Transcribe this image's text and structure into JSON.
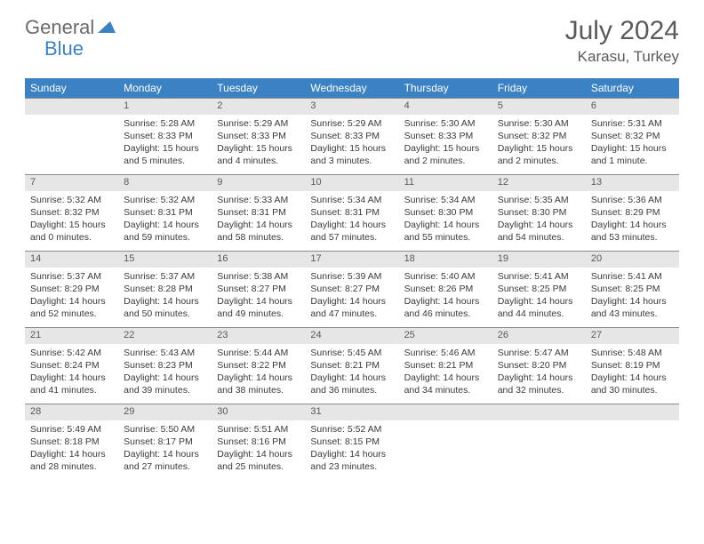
{
  "brand": {
    "part1": "General",
    "part2": "Blue"
  },
  "title": "July 2024",
  "location": "Karasu, Turkey",
  "colors": {
    "header_bg": "#3b82c4",
    "header_fg": "#ffffff",
    "daynum_bg": "#e6e6e6",
    "text": "#3a3a3a",
    "title": "#5a5a5a",
    "border": "#8a8a8a"
  },
  "weekdays": [
    "Sunday",
    "Monday",
    "Tuesday",
    "Wednesday",
    "Thursday",
    "Friday",
    "Saturday"
  ],
  "weeks": [
    {
      "nums": [
        "",
        "1",
        "2",
        "3",
        "4",
        "5",
        "6"
      ],
      "cells": [
        null,
        {
          "sr": "Sunrise: 5:28 AM",
          "ss": "Sunset: 8:33 PM",
          "d1": "Daylight: 15 hours",
          "d2": "and 5 minutes."
        },
        {
          "sr": "Sunrise: 5:29 AM",
          "ss": "Sunset: 8:33 PM",
          "d1": "Daylight: 15 hours",
          "d2": "and 4 minutes."
        },
        {
          "sr": "Sunrise: 5:29 AM",
          "ss": "Sunset: 8:33 PM",
          "d1": "Daylight: 15 hours",
          "d2": "and 3 minutes."
        },
        {
          "sr": "Sunrise: 5:30 AM",
          "ss": "Sunset: 8:33 PM",
          "d1": "Daylight: 15 hours",
          "d2": "and 2 minutes."
        },
        {
          "sr": "Sunrise: 5:30 AM",
          "ss": "Sunset: 8:32 PM",
          "d1": "Daylight: 15 hours",
          "d2": "and 2 minutes."
        },
        {
          "sr": "Sunrise: 5:31 AM",
          "ss": "Sunset: 8:32 PM",
          "d1": "Daylight: 15 hours",
          "d2": "and 1 minute."
        }
      ]
    },
    {
      "nums": [
        "7",
        "8",
        "9",
        "10",
        "11",
        "12",
        "13"
      ],
      "cells": [
        {
          "sr": "Sunrise: 5:32 AM",
          "ss": "Sunset: 8:32 PM",
          "d1": "Daylight: 15 hours",
          "d2": "and 0 minutes."
        },
        {
          "sr": "Sunrise: 5:32 AM",
          "ss": "Sunset: 8:31 PM",
          "d1": "Daylight: 14 hours",
          "d2": "and 59 minutes."
        },
        {
          "sr": "Sunrise: 5:33 AM",
          "ss": "Sunset: 8:31 PM",
          "d1": "Daylight: 14 hours",
          "d2": "and 58 minutes."
        },
        {
          "sr": "Sunrise: 5:34 AM",
          "ss": "Sunset: 8:31 PM",
          "d1": "Daylight: 14 hours",
          "d2": "and 57 minutes."
        },
        {
          "sr": "Sunrise: 5:34 AM",
          "ss": "Sunset: 8:30 PM",
          "d1": "Daylight: 14 hours",
          "d2": "and 55 minutes."
        },
        {
          "sr": "Sunrise: 5:35 AM",
          "ss": "Sunset: 8:30 PM",
          "d1": "Daylight: 14 hours",
          "d2": "and 54 minutes."
        },
        {
          "sr": "Sunrise: 5:36 AM",
          "ss": "Sunset: 8:29 PM",
          "d1": "Daylight: 14 hours",
          "d2": "and 53 minutes."
        }
      ]
    },
    {
      "nums": [
        "14",
        "15",
        "16",
        "17",
        "18",
        "19",
        "20"
      ],
      "cells": [
        {
          "sr": "Sunrise: 5:37 AM",
          "ss": "Sunset: 8:29 PM",
          "d1": "Daylight: 14 hours",
          "d2": "and 52 minutes."
        },
        {
          "sr": "Sunrise: 5:37 AM",
          "ss": "Sunset: 8:28 PM",
          "d1": "Daylight: 14 hours",
          "d2": "and 50 minutes."
        },
        {
          "sr": "Sunrise: 5:38 AM",
          "ss": "Sunset: 8:27 PM",
          "d1": "Daylight: 14 hours",
          "d2": "and 49 minutes."
        },
        {
          "sr": "Sunrise: 5:39 AM",
          "ss": "Sunset: 8:27 PM",
          "d1": "Daylight: 14 hours",
          "d2": "and 47 minutes."
        },
        {
          "sr": "Sunrise: 5:40 AM",
          "ss": "Sunset: 8:26 PM",
          "d1": "Daylight: 14 hours",
          "d2": "and 46 minutes."
        },
        {
          "sr": "Sunrise: 5:41 AM",
          "ss": "Sunset: 8:25 PM",
          "d1": "Daylight: 14 hours",
          "d2": "and 44 minutes."
        },
        {
          "sr": "Sunrise: 5:41 AM",
          "ss": "Sunset: 8:25 PM",
          "d1": "Daylight: 14 hours",
          "d2": "and 43 minutes."
        }
      ]
    },
    {
      "nums": [
        "21",
        "22",
        "23",
        "24",
        "25",
        "26",
        "27"
      ],
      "cells": [
        {
          "sr": "Sunrise: 5:42 AM",
          "ss": "Sunset: 8:24 PM",
          "d1": "Daylight: 14 hours",
          "d2": "and 41 minutes."
        },
        {
          "sr": "Sunrise: 5:43 AM",
          "ss": "Sunset: 8:23 PM",
          "d1": "Daylight: 14 hours",
          "d2": "and 39 minutes."
        },
        {
          "sr": "Sunrise: 5:44 AM",
          "ss": "Sunset: 8:22 PM",
          "d1": "Daylight: 14 hours",
          "d2": "and 38 minutes."
        },
        {
          "sr": "Sunrise: 5:45 AM",
          "ss": "Sunset: 8:21 PM",
          "d1": "Daylight: 14 hours",
          "d2": "and 36 minutes."
        },
        {
          "sr": "Sunrise: 5:46 AM",
          "ss": "Sunset: 8:21 PM",
          "d1": "Daylight: 14 hours",
          "d2": "and 34 minutes."
        },
        {
          "sr": "Sunrise: 5:47 AM",
          "ss": "Sunset: 8:20 PM",
          "d1": "Daylight: 14 hours",
          "d2": "and 32 minutes."
        },
        {
          "sr": "Sunrise: 5:48 AM",
          "ss": "Sunset: 8:19 PM",
          "d1": "Daylight: 14 hours",
          "d2": "and 30 minutes."
        }
      ]
    },
    {
      "nums": [
        "28",
        "29",
        "30",
        "31",
        "",
        "",
        ""
      ],
      "cells": [
        {
          "sr": "Sunrise: 5:49 AM",
          "ss": "Sunset: 8:18 PM",
          "d1": "Daylight: 14 hours",
          "d2": "and 28 minutes."
        },
        {
          "sr": "Sunrise: 5:50 AM",
          "ss": "Sunset: 8:17 PM",
          "d1": "Daylight: 14 hours",
          "d2": "and 27 minutes."
        },
        {
          "sr": "Sunrise: 5:51 AM",
          "ss": "Sunset: 8:16 PM",
          "d1": "Daylight: 14 hours",
          "d2": "and 25 minutes."
        },
        {
          "sr": "Sunrise: 5:52 AM",
          "ss": "Sunset: 8:15 PM",
          "d1": "Daylight: 14 hours",
          "d2": "and 23 minutes."
        },
        null,
        null,
        null
      ]
    }
  ]
}
